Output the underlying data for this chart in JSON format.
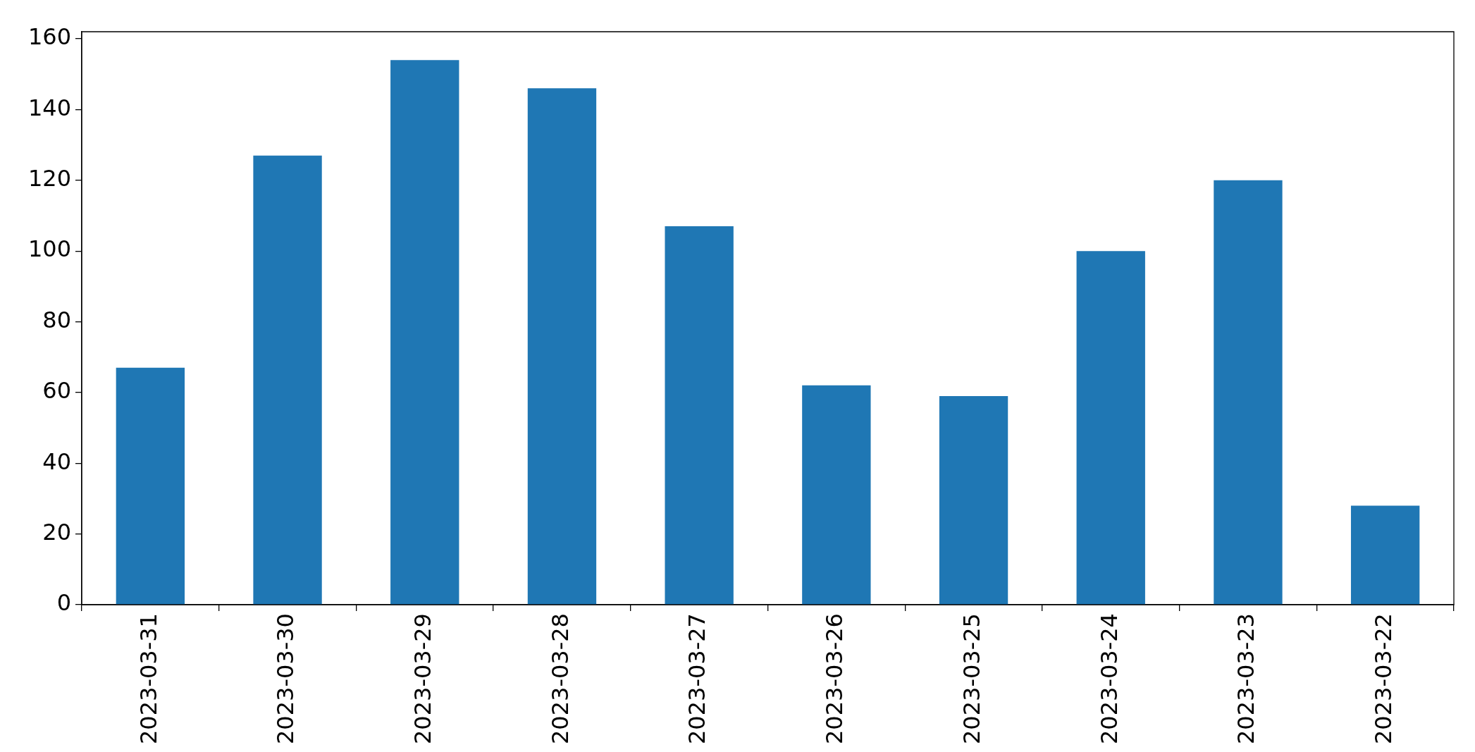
{
  "chart_data": {
    "type": "bar",
    "categories": [
      "2023-03-31",
      "2023-03-30",
      "2023-03-29",
      "2023-03-28",
      "2023-03-27",
      "2023-03-26",
      "2023-03-25",
      "2023-03-24",
      "2023-03-23",
      "2023-03-22"
    ],
    "values": [
      67,
      127,
      154,
      146,
      107,
      62,
      59,
      100,
      120,
      28
    ],
    "color": "#1f77b4",
    "ylim": [
      0,
      162
    ],
    "yticks": [
      0,
      20,
      40,
      60,
      80,
      100,
      120,
      140,
      160
    ],
    "grid": false,
    "legend": false
  }
}
